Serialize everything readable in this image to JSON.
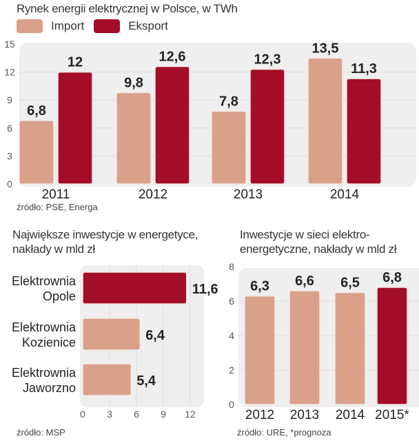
{
  "colors": {
    "import": "#d9a08a",
    "export": "#a30d28",
    "panel": "#efefef",
    "grid": "#dcdcdc"
  },
  "chart_data": [
    {
      "id": "energy-market",
      "type": "bar",
      "title": "Rynek energii elektrycznej w Polsce, w TWh",
      "categories": [
        "2011",
        "2012",
        "2013",
        "2014"
      ],
      "series": [
        {
          "name": "Import",
          "values": [
            6.8,
            9.8,
            7.8,
            13.5
          ],
          "labels": [
            "6,8",
            "9,8",
            "7,8",
            "13,5"
          ]
        },
        {
          "name": "Eksport",
          "values": [
            12,
            12.6,
            12.3,
            11.3
          ],
          "labels": [
            "12",
            "12,6",
            "12,3",
            "11,3"
          ]
        }
      ],
      "ylim": [
        0,
        15
      ],
      "yticks": [
        "0",
        "3",
        "6",
        "9",
        "12",
        "15"
      ],
      "grid": true,
      "legend": "top-left",
      "source": "źródło: PSE, Energa"
    },
    {
      "id": "largest-investments",
      "type": "bar",
      "orientation": "horizontal",
      "title": [
        "Największe inwestycje w energetyce,",
        "nakłady w mld zł"
      ],
      "categories": [
        [
          "Elektrownia",
          "Opole"
        ],
        [
          "Elektrownia",
          "Kozienice"
        ],
        [
          "Elektrownia",
          "Jaworzno"
        ]
      ],
      "values": [
        11.6,
        6.4,
        5.4
      ],
      "labels": [
        "11,6",
        "6,4",
        "5,4"
      ],
      "highlight": [
        true,
        false,
        false
      ],
      "xlim": [
        0,
        12
      ],
      "xticks": [
        "0",
        "3",
        "6",
        "9",
        "12"
      ],
      "grid": true,
      "source": "źródło: MSP"
    },
    {
      "id": "grid-investments",
      "type": "bar",
      "title": [
        "Inwestycje w sieci elektro-",
        "energetyczne, nakłady w mld zł"
      ],
      "categories": [
        "2012",
        "2013",
        "2014",
        "2015*"
      ],
      "values": [
        6.3,
        6.6,
        6.5,
        6.8
      ],
      "labels": [
        "6,3",
        "6,6",
        "6,5",
        "6,8"
      ],
      "highlight": [
        false,
        false,
        false,
        true
      ],
      "ylim": [
        0,
        8
      ],
      "yticks": [
        "0",
        "2",
        "4",
        "6",
        "8"
      ],
      "grid": true,
      "source": "źródło: URE, *prognoza"
    }
  ]
}
